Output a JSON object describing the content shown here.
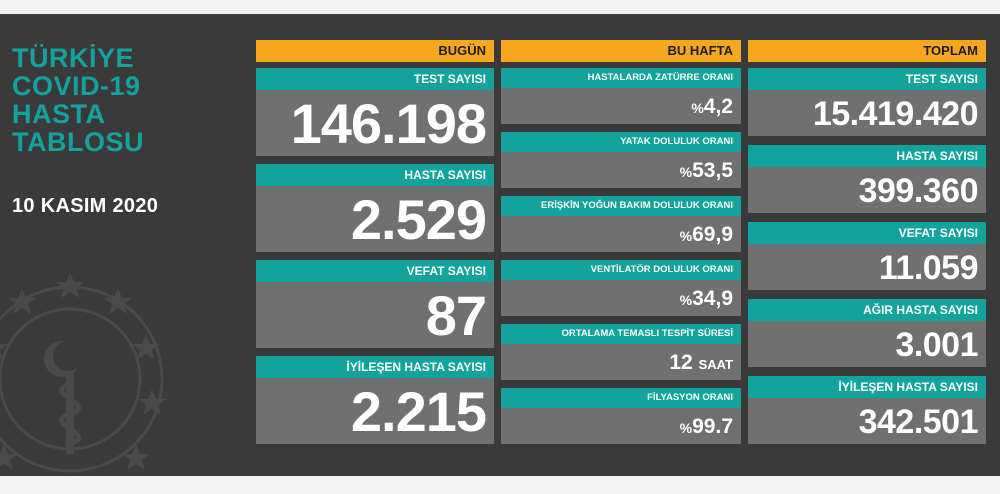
{
  "title_lines": [
    "TÜRKİYE",
    "COVID-19",
    "HASTA",
    "TABLOSU"
  ],
  "date": "10 KASIM 2020",
  "columns": {
    "today": {
      "header": "BUGÜN",
      "items": [
        {
          "label": "TEST SAYISI",
          "value": "146.198"
        },
        {
          "label": "HASTA SAYISI",
          "value": "2.529"
        },
        {
          "label": "VEFAT SAYISI",
          "value": "87"
        },
        {
          "label": "İYİLEŞEN HASTA SAYISI",
          "value": "2.215"
        }
      ]
    },
    "week": {
      "header": "BU HAFTA",
      "items": [
        {
          "label": "HASTALARDA ZATÜRRE ORANI",
          "prefix": "%",
          "value": "4,2",
          "unit": ""
        },
        {
          "label": "YATAK DOLULUK ORANI",
          "prefix": "%",
          "value": "53,5",
          "unit": ""
        },
        {
          "label": "ERİŞKİN YOĞUN BAKIM DOLULUK ORANI",
          "prefix": "%",
          "value": "69,9",
          "unit": ""
        },
        {
          "label": "VENTİLATÖR DOLULUK ORANI",
          "prefix": "%",
          "value": "34,9",
          "unit": ""
        },
        {
          "label": "ORTALAMA TEMASLI TESPİT SÜRESİ",
          "prefix": "",
          "value": "12",
          "unit": "SAAT"
        },
        {
          "label": "FİLYASYON ORANI",
          "prefix": "%",
          "value": "99.7",
          "unit": ""
        }
      ]
    },
    "total": {
      "header": "TOPLAM",
      "items": [
        {
          "label": "TEST SAYISI",
          "value": "15.419.420"
        },
        {
          "label": "HASTA SAYISI",
          "value": "399.360"
        },
        {
          "label": "VEFAT SAYISI",
          "value": "11.059"
        },
        {
          "label": "AĞIR HASTA SAYISI",
          "value": "3.001"
        },
        {
          "label": "İYİLEŞEN HASTA SAYISI",
          "value": "342.501"
        }
      ]
    }
  },
  "colors": {
    "panel": "#3a3a3a",
    "accent_teal": "#12a49c",
    "header_orange": "#f5a81e",
    "value_gray": "#707070"
  }
}
